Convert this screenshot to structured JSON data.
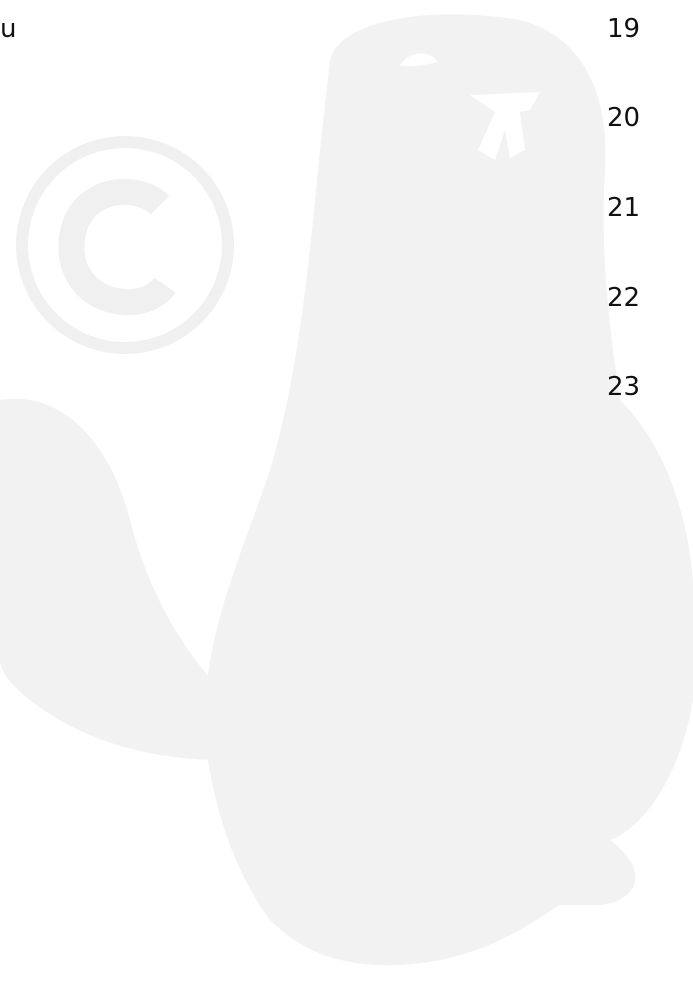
{
  "fragment": "u",
  "numbers": [
    19,
    20,
    21,
    22,
    23
  ]
}
